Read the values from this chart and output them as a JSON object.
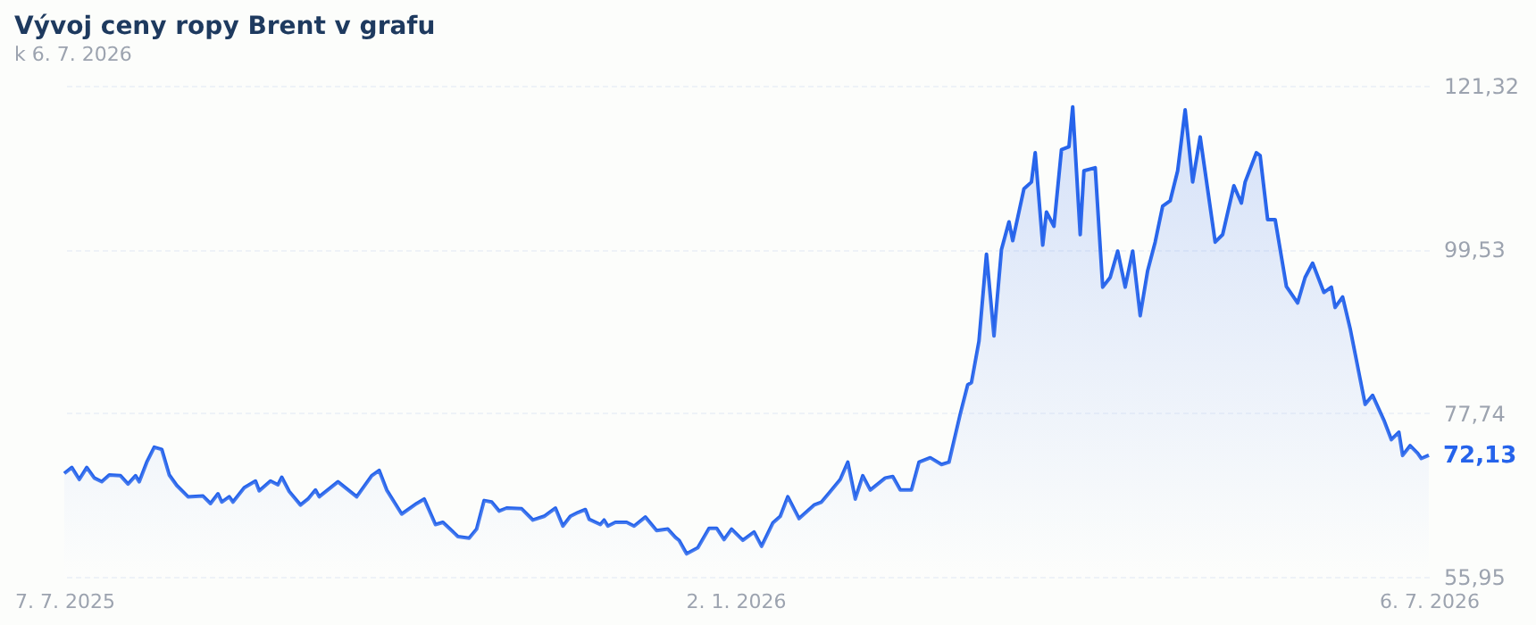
{
  "chart_data": {
    "type": "area",
    "title": "Vývoj ceny ropy Brent v grafu",
    "subtitle": "k 6. 7. 2026",
    "x": [
      "2025-07-07",
      "2025-07-09",
      "2025-07-11",
      "2025-07-13",
      "2025-07-15",
      "2025-07-17",
      "2025-07-19",
      "2025-07-22",
      "2025-07-24",
      "2025-07-26",
      "2025-07-27",
      "2025-07-29",
      "2025-07-31",
      "2025-08-02",
      "2025-08-04",
      "2025-08-06",
      "2025-08-09",
      "2025-08-13",
      "2025-08-15",
      "2025-08-17",
      "2025-08-18",
      "2025-08-20",
      "2025-08-21",
      "2025-08-24",
      "2025-08-27",
      "2025-08-28",
      "2025-08-31",
      "2025-09-02",
      "2025-09-03",
      "2025-09-05",
      "2025-09-08",
      "2025-09-10",
      "2025-09-12",
      "2025-09-13",
      "2025-09-18",
      "2025-09-23",
      "2025-09-27",
      "2025-09-29",
      "2025-10-01",
      "2025-10-05",
      "2025-10-09",
      "2025-10-11",
      "2025-10-14",
      "2025-10-16",
      "2025-10-20",
      "2025-10-23",
      "2025-10-25",
      "2025-10-27",
      "2025-10-29",
      "2025-10-31",
      "2025-11-02",
      "2025-11-06",
      "2025-11-09",
      "2025-11-12",
      "2025-11-15",
      "2025-11-17",
      "2025-11-19",
      "2025-11-21",
      "2025-11-23",
      "2025-11-24",
      "2025-11-27",
      "2025-11-28",
      "2025-11-29",
      "2025-12-01",
      "2025-12-04",
      "2025-12-06",
      "2025-12-09",
      "2025-12-12",
      "2025-12-15",
      "2025-12-17",
      "2025-12-18",
      "2025-12-20",
      "2025-12-23",
      "2025-12-26",
      "2025-12-28",
      "2025-12-30",
      "2026-01-01",
      "2026-01-04",
      "2026-01-07",
      "2026-01-09",
      "2026-01-12",
      "2026-01-14",
      "2026-01-16",
      "2026-01-19",
      "2026-01-23",
      "2026-01-25",
      "2026-01-27",
      "2026-01-30",
      "2026-02-01",
      "2026-02-03",
      "2026-02-05",
      "2026-02-07",
      "2026-02-11",
      "2026-02-13",
      "2026-02-15",
      "2026-02-18",
      "2026-02-20",
      "2026-02-23",
      "2026-02-26",
      "2026-02-28",
      "2026-03-03",
      "2026-03-05",
      "2026-03-06",
      "2026-03-08",
      "2026-03-10",
      "2026-03-12",
      "2026-03-14",
      "2026-03-16",
      "2026-03-17",
      "2026-03-20",
      "2026-03-22",
      "2026-03-23",
      "2026-03-25",
      "2026-03-26",
      "2026-03-28",
      "2026-03-30",
      "2026-04-01",
      "2026-04-02",
      "2026-04-04",
      "2026-04-05",
      "2026-04-08",
      "2026-04-10",
      "2026-04-12",
      "2026-04-14",
      "2026-04-16",
      "2026-04-18",
      "2026-04-20",
      "2026-04-22",
      "2026-04-24",
      "2026-04-26",
      "2026-04-28",
      "2026-04-30",
      "2026-05-02",
      "2026-05-04",
      "2026-05-06",
      "2026-05-10",
      "2026-05-12",
      "2026-05-15",
      "2026-05-17",
      "2026-05-18",
      "2026-05-21",
      "2026-05-22",
      "2026-05-24",
      "2026-05-26",
      "2026-05-29",
      "2026-06-01",
      "2026-06-03",
      "2026-06-05",
      "2026-06-08",
      "2026-06-10",
      "2026-06-11",
      "2026-06-13",
      "2026-06-15",
      "2026-06-19",
      "2026-06-21",
      "2026-06-24",
      "2026-06-26",
      "2026-06-28",
      "2026-06-29",
      "2026-07-01",
      "2026-07-03",
      "2026-07-04",
      "2026-07-06"
    ],
    "series": [
      {
        "color": "#2563eb",
        "values": [
          69.7,
          70.5,
          68.9,
          70.5,
          69.1,
          68.6,
          69.5,
          69.4,
          68.3,
          69.4,
          68.6,
          71.2,
          73.2,
          72.9,
          69.5,
          68.1,
          66.6,
          66.7,
          65.7,
          67.0,
          65.9,
          66.6,
          65.9,
          67.8,
          68.7,
          67.4,
          68.7,
          68.2,
          69.2,
          67.3,
          65.5,
          66.3,
          67.5,
          66.6,
          68.6,
          66.6,
          69.4,
          70.1,
          67.5,
          64.3,
          65.7,
          66.3,
          62.9,
          63.2,
          61.3,
          61.1,
          62.3,
          66.1,
          65.9,
          64.7,
          65.1,
          65.0,
          63.5,
          64.0,
          65.1,
          62.7,
          64.0,
          64.5,
          64.9,
          63.6,
          62.9,
          63.5,
          62.7,
          63.2,
          63.2,
          62.7,
          63.9,
          62.1,
          62.3,
          61.2,
          60.8,
          59.0,
          59.8,
          62.4,
          62.4,
          60.9,
          62.3,
          60.8,
          61.9,
          60.0,
          63.1,
          64.0,
          66.6,
          63.7,
          65.5,
          65.9,
          67.1,
          68.9,
          71.2,
          66.3,
          69.4,
          67.5,
          69.1,
          69.3,
          67.5,
          67.5,
          71.2,
          71.8,
          70.9,
          71.2,
          77.6,
          81.5,
          81.8,
          87.3,
          98.9,
          88.0,
          99.5,
          103.2,
          100.7,
          107.6,
          108.5,
          112.4,
          100.1,
          104.5,
          102.6,
          112.8,
          113.2,
          118.5,
          101.5,
          110.0,
          110.4,
          94.5,
          95.8,
          99.3,
          94.5,
          99.3,
          90.7,
          96.7,
          100.5,
          105.3,
          106.0,
          110.0,
          118.1,
          108.5,
          114.5,
          100.5,
          101.5,
          108.0,
          105.7,
          108.5,
          112.4,
          112.0,
          103.5,
          103.5,
          94.6,
          92.4,
          95.8,
          97.7,
          93.8,
          94.5,
          91.8,
          93.2,
          89.0,
          78.9,
          80.1,
          76.8,
          74.2,
          75.2,
          72.1,
          73.4,
          72.4,
          71.7,
          72.13
        ]
      }
    ],
    "xlim": [
      "2025-07-07",
      "2026-07-06"
    ],
    "xticks": [
      {
        "value": "2025-07-07",
        "label": "7. 7. 2025"
      },
      {
        "value": "2026-01-02",
        "label": "2. 1. 2026"
      },
      {
        "value": "2026-07-06",
        "label": "6. 7. 2026"
      }
    ],
    "ylim": [
      55.95,
      121.32
    ],
    "yticks": [
      {
        "value": 55.95,
        "label": "55,95"
      },
      {
        "value": 77.74,
        "label": "77,74"
      },
      {
        "value": 99.53,
        "label": "99,53"
      },
      {
        "value": 121.32,
        "label": "121,32"
      }
    ],
    "grid": "y",
    "annotations": [
      {
        "text": "72,13",
        "x": "2026-07-06",
        "y": 72.13
      }
    ]
  }
}
